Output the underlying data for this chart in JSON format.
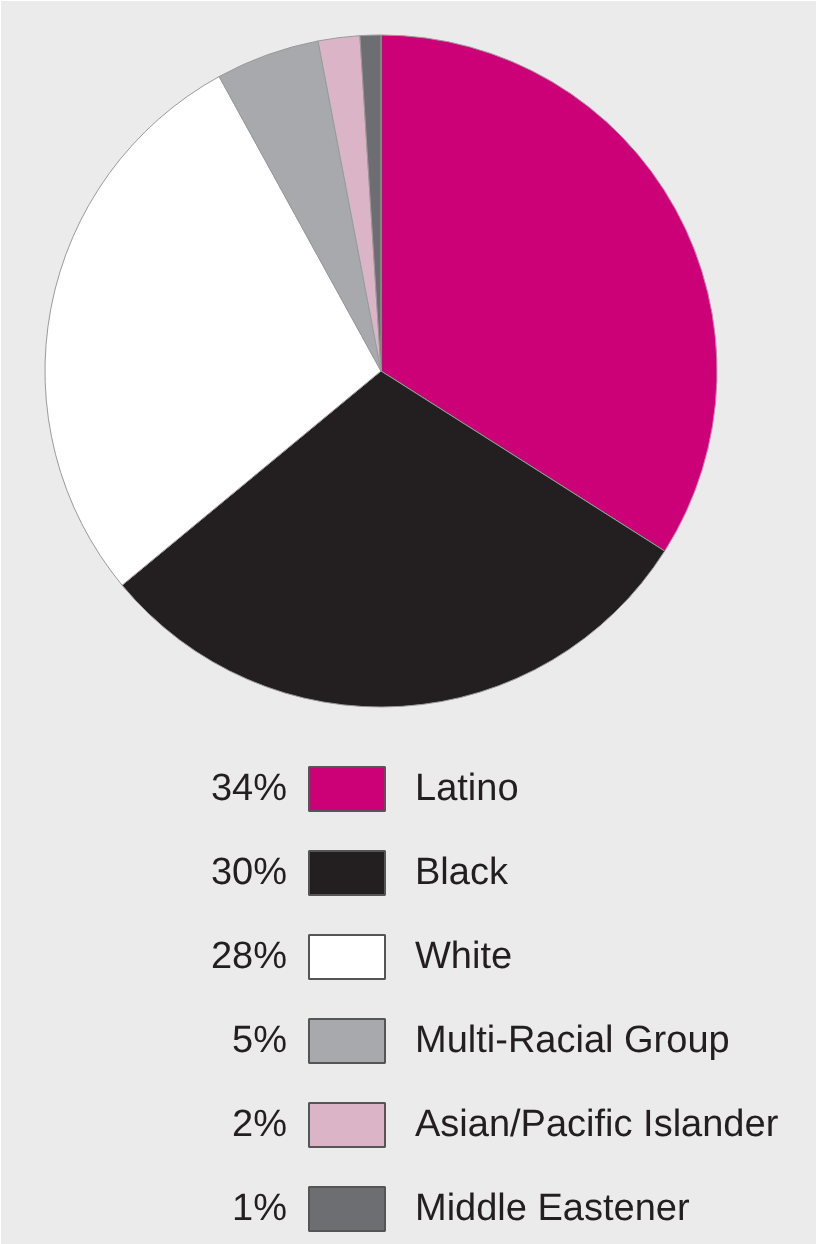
{
  "chart_data": {
    "type": "pie",
    "categories": [
      "Latino",
      "Black",
      "White",
      "Multi-Racial Group",
      "Asian/Pacific Islander",
      "Middle Eastener"
    ],
    "values": [
      34,
      30,
      28,
      5,
      2,
      1
    ],
    "colors": [
      "#cc0077",
      "#231f20",
      "#ffffff",
      "#a7a9ac",
      "#dbb4c8",
      "#6d6e71"
    ],
    "value_labels": [
      "34%",
      "30%",
      "28%",
      "5%",
      "2%",
      "1%"
    ],
    "legend": "bottom"
  }
}
